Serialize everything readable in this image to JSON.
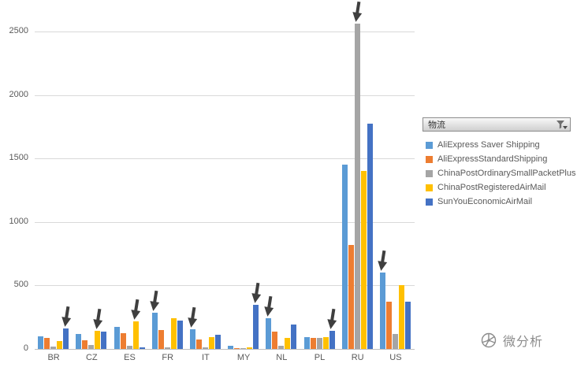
{
  "chart_data": {
    "type": "bar",
    "title": "",
    "xlabel": "",
    "ylabel": "",
    "categories": [
      "BR",
      "CZ",
      "ES",
      "FR",
      "IT",
      "MY",
      "NL",
      "PL",
      "RU",
      "US"
    ],
    "series": [
      {
        "name": "AliExpress Saver Shipping",
        "color": "#5B9BD5",
        "values": [
          100,
          118,
          174,
          285,
          155,
          25,
          242,
          93,
          1452,
          602
        ]
      },
      {
        "name": "AliExpressStandardShipping",
        "color": "#ED7D31",
        "values": [
          88,
          68,
          124,
          149,
          74,
          6,
          136,
          87,
          819,
          372
        ]
      },
      {
        "name": "ChinaPostOrdinarySmallPacketPlus",
        "color": "#A5A5A5",
        "values": [
          20,
          31,
          25,
          12,
          12,
          3,
          25,
          87,
          2560,
          118
        ]
      },
      {
        "name": "ChinaPostRegisteredAirMail",
        "color": "#FFC000",
        "values": [
          62,
          143,
          217,
          242,
          93,
          12,
          87,
          93,
          1402,
          502
        ]
      },
      {
        "name": "SunYouEconomicAirMail",
        "color": "#4472C4",
        "values": [
          160,
          136,
          15,
          223,
          112,
          347,
          192,
          143,
          1774,
          372
        ]
      }
    ],
    "y_ticks": [
      0,
      500,
      1000,
      1500,
      2000,
      2500
    ],
    "ylim": [
      0,
      2500
    ],
    "grid": true,
    "legend_position": "right",
    "annotations": {
      "style": "down-arrow",
      "color": "#3f3f3f",
      "arrows": [
        {
          "category": "BR",
          "series": 4
        },
        {
          "category": "CZ",
          "series": 3
        },
        {
          "category": "ES",
          "series": 3
        },
        {
          "category": "FR",
          "series": 0
        },
        {
          "category": "IT",
          "series": 0
        },
        {
          "category": "MY",
          "series": 4
        },
        {
          "category": "NL",
          "series": 0
        },
        {
          "category": "PL",
          "series": 4
        },
        {
          "category": "RU",
          "series": 2
        },
        {
          "category": "US",
          "series": 0
        }
      ]
    }
  },
  "legend": {
    "field_label": "物流",
    "items": [
      "AliExpress Saver Shipping",
      "AliExpressStandardShipping",
      "ChinaPostOrdinarySmallPacketPlus",
      "ChinaPostRegisteredAirMail",
      "SunYouEconomicAirMail"
    ]
  },
  "watermark": {
    "text": "微分析"
  }
}
